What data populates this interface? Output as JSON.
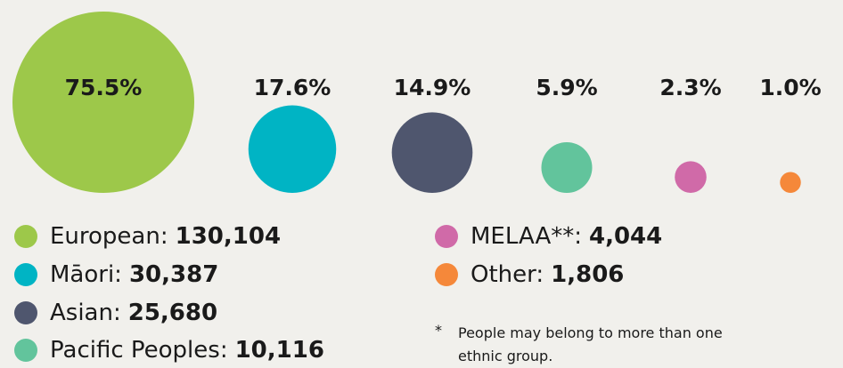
{
  "chart_data": {
    "type": "bubble",
    "categories": [
      "European",
      "Māori",
      "Asian",
      "Pacific Peoples",
      "MELAA**",
      "Other"
    ],
    "values": [
      75.5,
      17.6,
      14.9,
      5.9,
      2.3,
      1.0
    ],
    "value_labels": [
      "75.5%",
      "17.6%",
      "14.9%",
      "5.9%",
      "2.3%",
      "1.0%"
    ],
    "colors": [
      "#9dc84a",
      "#00b4c4",
      "#4f566e",
      "#62c49c",
      "#d06aa8",
      "#f5883a"
    ],
    "legend": [
      {
        "label": "European:",
        "count": 130104,
        "count_label": "130,104"
      },
      {
        "label": "Māori:",
        "count": 30387,
        "count_label": "30,387"
      },
      {
        "label": "Asian:",
        "count": 25680,
        "count_label": "25,680"
      },
      {
        "label": "Pacific Peoples:",
        "count": 10116,
        "count_label": "10,116"
      },
      {
        "label": "MELAA**:",
        "count": 4044,
        "count_label": "4,044"
      },
      {
        "label": "Other:",
        "count": 1806,
        "count_label": "1,806"
      }
    ],
    "footnote": {
      "marker": "*",
      "text": "People may belong to more than one ethnic group."
    }
  }
}
